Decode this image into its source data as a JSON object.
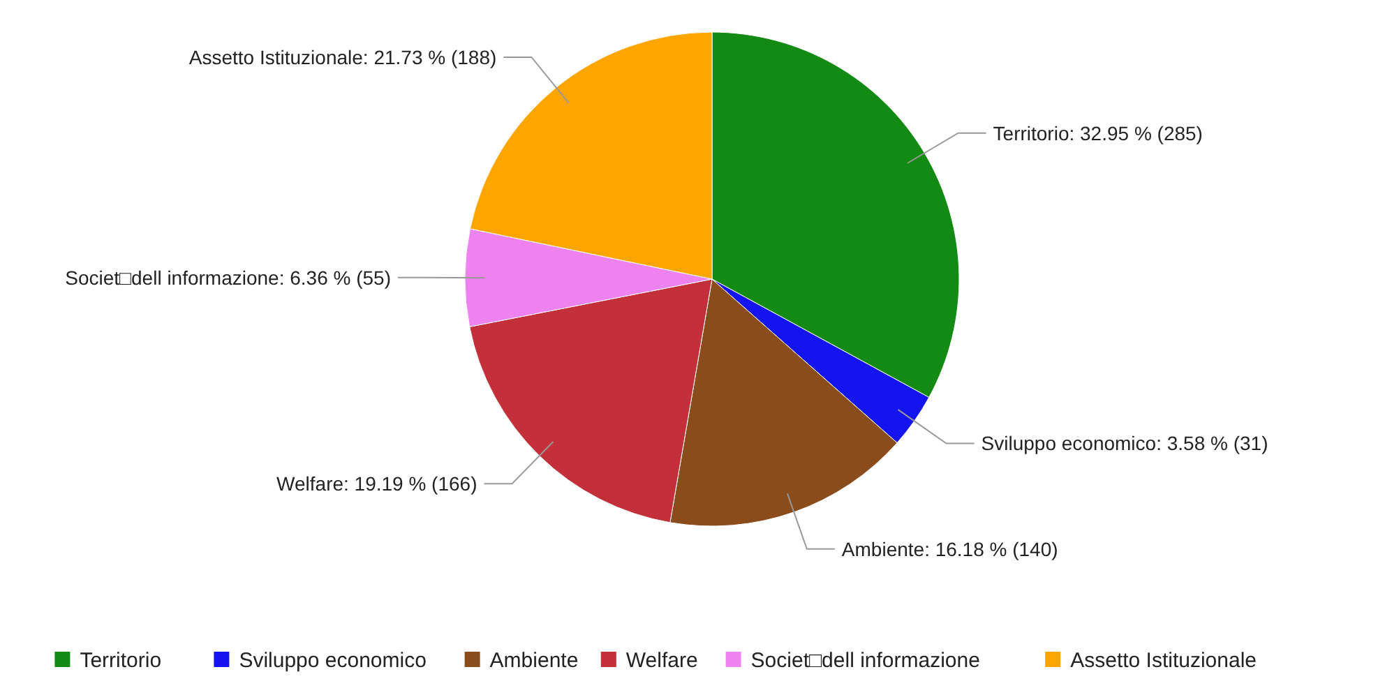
{
  "chart_data": {
    "type": "pie",
    "categories": [
      "Territorio",
      "Sviluppo economico",
      "Ambiente",
      "Welfare",
      "Societ□dell informazione",
      "Assetto Istituzionale"
    ],
    "values": [
      285,
      31,
      140,
      166,
      55,
      188
    ],
    "colors": [
      "#138a13",
      "#1414f0",
      "#8b4c1c",
      "#c4303a",
      "#ee82ee",
      "#ffa500"
    ],
    "value_labels": [
      "Territorio: 32.95 % (285)",
      "Sviluppo economico: 3.58 % (31)",
      "Ambiente: 16.18 % (140)",
      "Welfare: 19.19 % (166)",
      "Societ□dell informazione: 6.36 % (55)",
      "Assetto Istituzionale: 21.73 % (188)"
    ],
    "legend": "bottom"
  }
}
